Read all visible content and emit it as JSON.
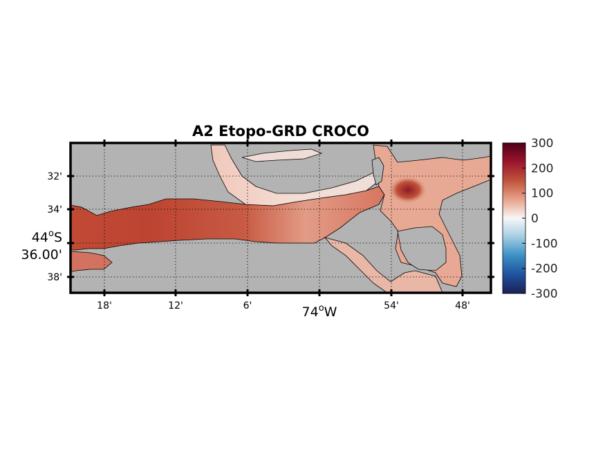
{
  "title": "A2 Etopo-GRD CROCO",
  "colors": {
    "land": "#b3b3b3",
    "coastline": "#000000",
    "ocean_high": "#67001f",
    "ocean_mid": "#c0533c",
    "ocean_low": "#f7f7f7",
    "ocean_neg": "#2166ac"
  },
  "map": {
    "x_ticks": [
      "18'",
      "12'",
      "6'",
      "54'",
      "48'"
    ],
    "x_main_label": "74°W",
    "x_main_deg": "74",
    "x_main_dir": "W",
    "y_ticks": [
      "32'",
      "34'",
      "38'"
    ],
    "y_main_label_1": "44°S",
    "y_main_deg": "44",
    "y_main_dir": "S",
    "y_main_label_2": "36.00'"
  },
  "colorbar": {
    "ticks": [
      "300",
      "200",
      "100",
      "0",
      "-100",
      "-200",
      "-300"
    ],
    "min": -300,
    "max": 300
  }
}
